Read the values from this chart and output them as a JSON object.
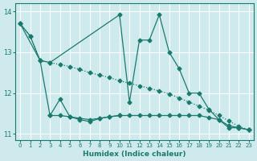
{
  "xlabel": "Humidex (Indice chaleur)",
  "background_color": "#ceeaec",
  "grid_color": "#ffffff",
  "line_color": "#1a7a6e",
  "xlim": [
    -0.5,
    23.5
  ],
  "ylim": [
    10.85,
    14.2
  ],
  "yticks": [
    11,
    12,
    13,
    14
  ],
  "xticks": [
    0,
    1,
    2,
    3,
    4,
    5,
    6,
    7,
    8,
    9,
    10,
    11,
    12,
    13,
    14,
    15,
    16,
    17,
    18,
    19,
    20,
    21,
    22,
    23
  ],
  "line1_x": [
    0,
    1,
    2,
    3,
    4,
    5,
    6,
    7,
    8,
    9,
    10,
    11,
    12,
    13,
    14,
    15,
    16,
    17,
    18,
    19,
    20,
    21,
    22,
    23
  ],
  "line1_y": [
    13.7,
    13.4,
    12.8,
    12.75,
    12.7,
    12.65,
    12.58,
    12.5,
    12.44,
    12.38,
    12.3,
    12.24,
    12.18,
    12.12,
    12.05,
    11.98,
    11.88,
    11.78,
    11.68,
    11.58,
    11.45,
    11.32,
    11.18,
    11.1
  ],
  "line2_x": [
    0,
    2,
    3,
    10,
    11,
    12,
    13,
    14,
    15,
    16,
    17,
    18,
    19,
    20,
    21,
    22,
    23
  ],
  "line2_y": [
    13.7,
    12.8,
    12.75,
    13.92,
    11.78,
    13.3,
    13.3,
    13.92,
    13.0,
    12.6,
    12.0,
    12.0,
    11.6,
    11.35,
    11.15,
    11.15,
    11.1
  ],
  "line3_x": [
    0,
    1,
    2,
    3,
    4,
    5,
    6,
    7,
    8,
    9,
    10,
    11,
    12,
    13,
    14,
    15,
    16,
    17,
    18,
    19,
    20,
    21,
    22,
    23
  ],
  "line3_y": [
    13.7,
    13.4,
    12.8,
    11.45,
    11.45,
    11.42,
    11.38,
    11.35,
    11.38,
    11.42,
    11.45,
    11.45,
    11.45,
    11.45,
    11.45,
    11.45,
    11.45,
    11.45,
    11.45,
    11.4,
    11.35,
    11.2,
    11.15,
    11.1
  ],
  "line4_x": [
    3,
    4,
    5,
    6,
    7,
    8,
    9,
    10
  ],
  "line4_y": [
    11.45,
    11.85,
    11.42,
    11.35,
    11.3,
    11.38,
    11.42,
    11.45
  ]
}
